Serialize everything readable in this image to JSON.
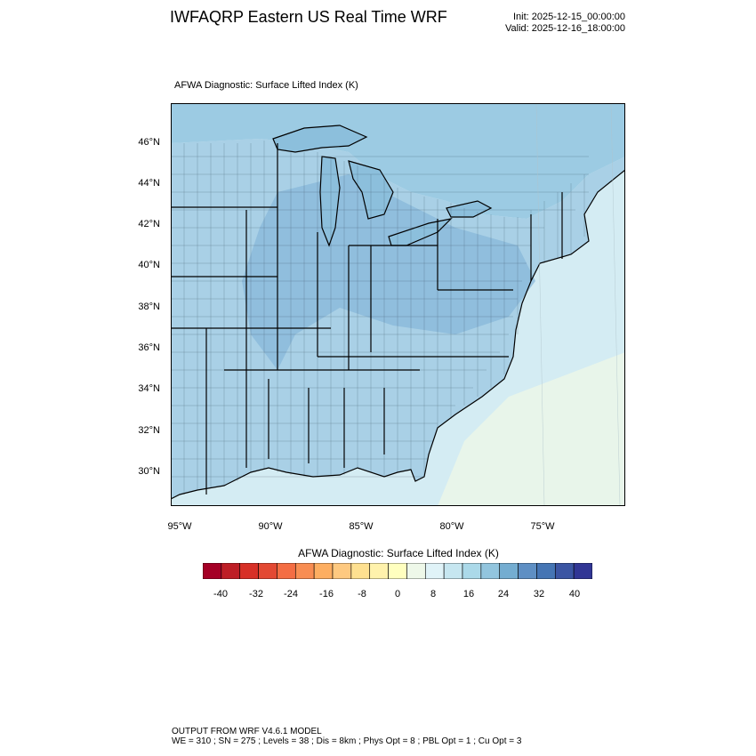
{
  "header": {
    "title": "IWFAQRP Eastern US Real Time WRF",
    "init": "Init: 2025-12-15_00:00:00",
    "valid": "Valid: 2025-12-16_18:00:00"
  },
  "plot": {
    "title": "AFWA Diagnostic: Surface Lifted Index   (K)",
    "lat_labels": [
      "46°N",
      "44°N",
      "42°N",
      "40°N",
      "38°N",
      "36°N",
      "34°N",
      "32°N",
      "30°N"
    ],
    "lon_labels": [
      "95°W",
      "90°W",
      "85°W",
      "80°W",
      "75°W"
    ]
  },
  "colorbar": {
    "title": "AFWA Diagnostic: Surface Lifted Index  (K)",
    "tick_labels": [
      "-40",
      "-32",
      "-24",
      "-16",
      "-8",
      "0",
      "8",
      "16",
      "24",
      "32",
      "40"
    ],
    "colors": [
      "#a50026",
      "#be1e26",
      "#d73027",
      "#e34933",
      "#f46d43",
      "#f88d52",
      "#fdae61",
      "#fec980",
      "#fee090",
      "#fff2ac",
      "#ffffbf",
      "#eef8e9",
      "#e0f3f8",
      "#c6e6f0",
      "#abd9e9",
      "#92c5de",
      "#74add1",
      "#5e8fc4",
      "#4575b4",
      "#3b55a3",
      "#313695"
    ]
  },
  "map": {
    "ocean_color": "#d4ecf3",
    "offshore_color": "#e8f5ea",
    "land_color": "#a9d0e6",
    "lake_color": "#8cbfdc",
    "canada_color": "#9ccbe3"
  },
  "footer": {
    "line1": "OUTPUT FROM WRF V4.6.1 MODEL",
    "line2": "WE = 310 ; SN = 275 ; Levels = 38 ; Dis = 8km ; Phys Opt = 8 ; PBL Opt = 1 ; Cu Opt = 3"
  }
}
